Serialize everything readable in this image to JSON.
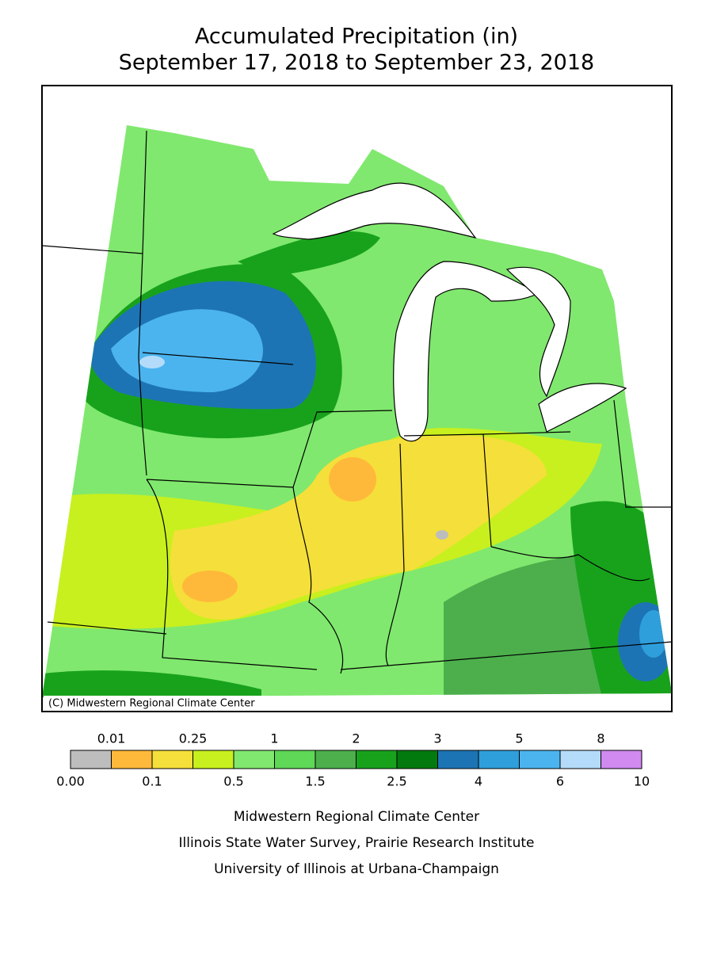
{
  "header": {
    "title": "Accumulated Precipitation (in)",
    "subtitle": "September 17, 2018 to September 23, 2018"
  },
  "map": {
    "copyright": "(C) Midwestern Regional Climate Center"
  },
  "legend": {
    "colors": [
      "#bdbdbd",
      "#ffb93a",
      "#f5df3a",
      "#c8f01e",
      "#80e86e",
      "#5ed856",
      "#4caf4c",
      "#18a21c",
      "#037a0e",
      "#1d74b4",
      "#2f9fdc",
      "#4bb4ef",
      "#b4dcfa",
      "#d08af0"
    ],
    "boundaries": [
      {
        "value": 0,
        "label": "0.00"
      },
      0.01,
      0.1,
      0.25,
      0.5,
      1,
      1.5,
      2,
      2.5,
      3,
      4,
      5,
      6,
      8,
      10
    ]
  },
  "footer": {
    "lines": [
      "Midwestern Regional Climate Center",
      "Illinois State Water Survey, Prairie Research Institute",
      "University of Illinois at Urbana-Champaign"
    ]
  }
}
